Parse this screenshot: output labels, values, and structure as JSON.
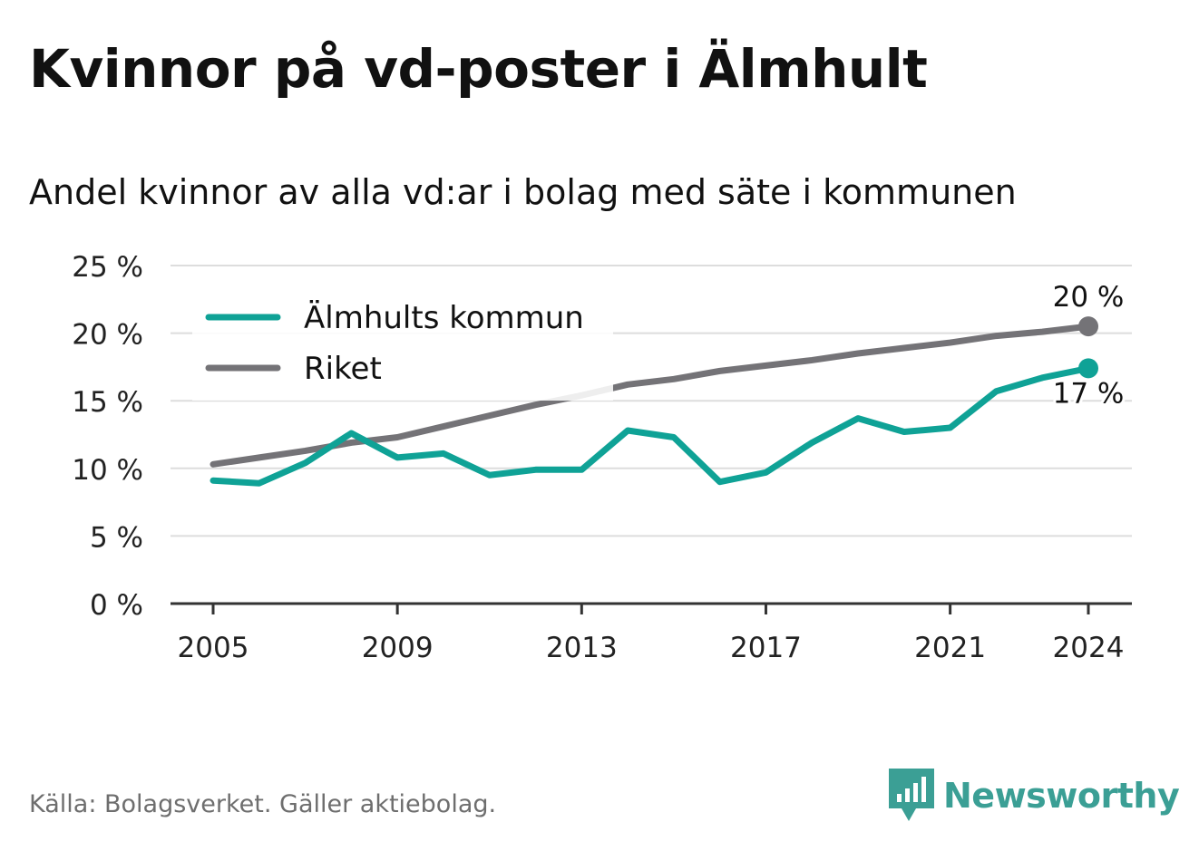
{
  "title": "Kvinnor på vd-poster i Älmhult",
  "subtitle": "Andel kvinnor av alla vd:ar i bolag med säte i kommunen",
  "source": "Källa: Bolagsverket. Gäller aktiebolag.",
  "brand": {
    "name": "Newsworthy",
    "icon": "newsworthy-logo-icon"
  },
  "colors": {
    "almhult": "#0fa296",
    "riket": "#747377",
    "grid": "#dddddd",
    "axis": "#333333"
  },
  "chart_data": {
    "type": "line",
    "x": [
      2005,
      2006,
      2007,
      2008,
      2009,
      2010,
      2011,
      2012,
      2013,
      2014,
      2015,
      2016,
      2017,
      2018,
      2019,
      2020,
      2021,
      2022,
      2023,
      2024
    ],
    "x_ticks": [
      "2005",
      "2009",
      "2013",
      "2017",
      "2021",
      "2024"
    ],
    "y_ticks": [
      "0 %",
      "5 %",
      "10 %",
      "15 %",
      "20 %",
      "25 %"
    ],
    "ylim": [
      0,
      25
    ],
    "grid": true,
    "legend_position": "top-left",
    "series": [
      {
        "name": "Älmhults kommun",
        "color": "#0fa296",
        "values": [
          9.1,
          8.9,
          10.4,
          12.6,
          10.8,
          11.1,
          9.5,
          9.9,
          9.9,
          12.8,
          12.3,
          9.0,
          9.7,
          11.9,
          13.7,
          12.7,
          13.0,
          15.7,
          16.7,
          17.4
        ],
        "end_label": "17 %"
      },
      {
        "name": "Riket",
        "color": "#747377",
        "values": [
          10.3,
          10.8,
          11.3,
          11.9,
          12.3,
          13.1,
          13.9,
          14.7,
          15.4,
          16.2,
          16.6,
          17.2,
          17.6,
          18.0,
          18.5,
          18.9,
          19.3,
          19.8,
          20.1,
          20.5
        ],
        "end_label": "20 %"
      }
    ]
  }
}
